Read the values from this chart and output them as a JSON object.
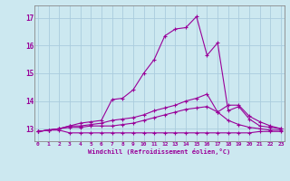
{
  "xlabel": "Windchill (Refroidissement éolien,°C)",
  "background_color": "#cce8f0",
  "grid_color": "#aaccdd",
  "line_color": "#990099",
  "x_values": [
    0,
    1,
    2,
    3,
    4,
    5,
    6,
    7,
    8,
    9,
    10,
    11,
    12,
    13,
    14,
    15,
    16,
    17,
    18,
    19,
    20,
    21,
    22,
    23
  ],
  "ylim": [
    12.55,
    17.45
  ],
  "yticks": [
    13,
    14,
    15,
    16,
    17
  ],
  "xlim": [
    -0.3,
    23.3
  ],
  "series": [
    [
      12.9,
      12.95,
      12.95,
      12.85,
      12.85,
      12.85,
      12.85,
      12.85,
      12.85,
      12.85,
      12.85,
      12.85,
      12.85,
      12.85,
      12.85,
      12.85,
      12.85,
      12.85,
      12.85,
      12.85,
      12.85,
      12.9,
      12.9,
      12.9
    ],
    [
      12.9,
      12.95,
      13.0,
      13.05,
      13.05,
      13.1,
      13.1,
      13.1,
      13.15,
      13.2,
      13.3,
      13.4,
      13.5,
      13.6,
      13.7,
      13.75,
      13.8,
      13.6,
      13.85,
      13.85,
      13.45,
      13.25,
      13.1,
      13.0
    ],
    [
      12.9,
      12.95,
      13.0,
      13.1,
      13.1,
      13.15,
      13.2,
      13.3,
      13.35,
      13.4,
      13.5,
      13.65,
      13.75,
      13.85,
      14.0,
      14.1,
      14.25,
      13.6,
      13.3,
      13.15,
      13.05,
      13.0,
      12.95,
      12.95
    ],
    [
      12.9,
      12.95,
      13.0,
      13.1,
      13.2,
      13.25,
      13.3,
      14.05,
      14.1,
      14.4,
      15.0,
      15.5,
      16.35,
      16.6,
      16.65,
      17.05,
      15.65,
      16.1,
      13.65,
      13.8,
      13.35,
      13.1,
      13.05,
      13.0
    ]
  ]
}
